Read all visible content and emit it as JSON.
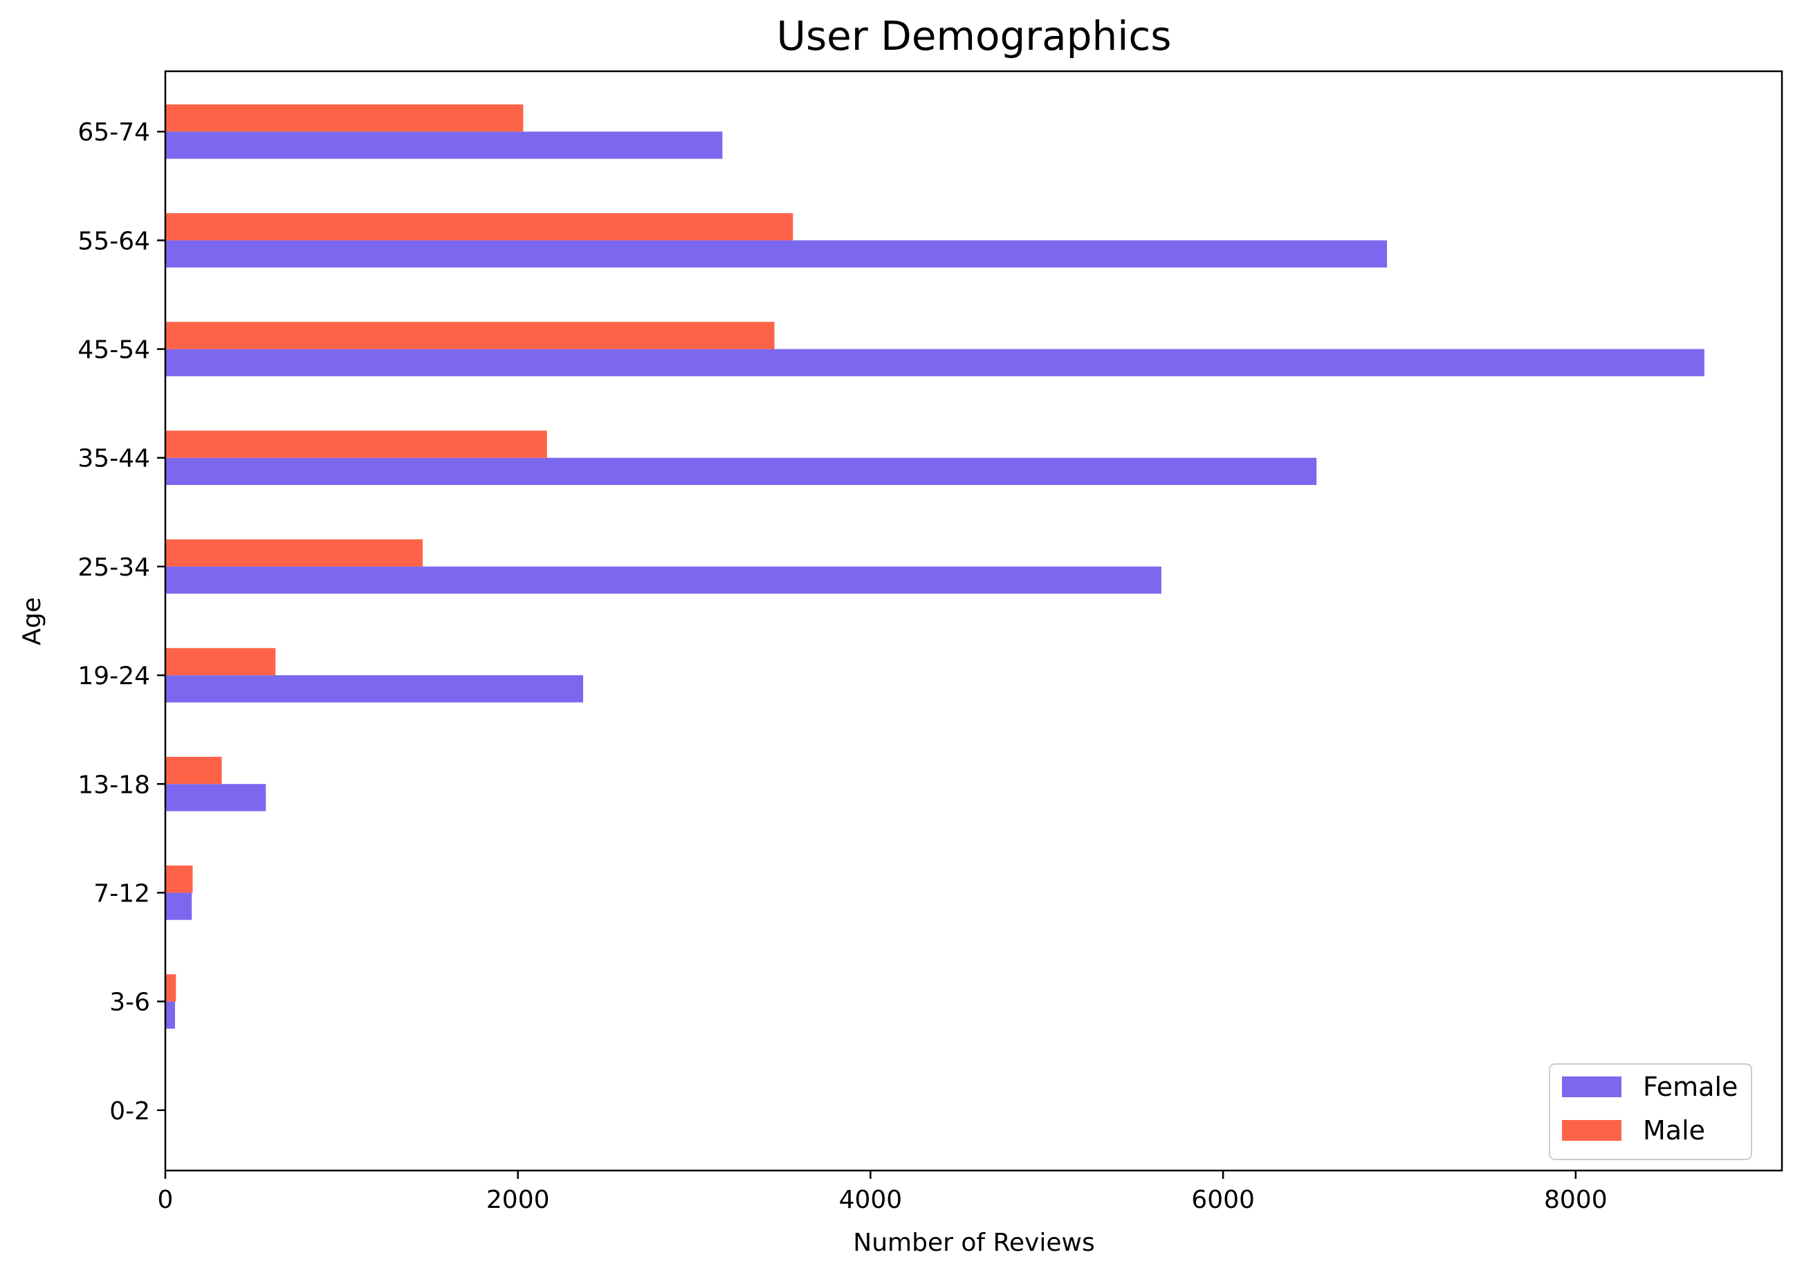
{
  "chart_data": {
    "type": "bar",
    "orientation": "horizontal",
    "title": "User Demographics",
    "xlabel": "Number of Reviews",
    "ylabel": "Age",
    "categories": [
      "0-2",
      "3-6",
      "7-12",
      "13-18",
      "19-24",
      "25-34",
      "35-44",
      "45-54",
      "55-64",
      "65-74"
    ],
    "series": [
      {
        "name": "Female",
        "color": "#7B68EE",
        "values": [
          0,
          55,
          150,
          570,
          2370,
          5650,
          6530,
          8730,
          6930,
          3160
        ]
      },
      {
        "name": "Male",
        "color": "#FF6347",
        "values": [
          0,
          60,
          155,
          320,
          625,
          1460,
          2165,
          3455,
          3560,
          2030
        ]
      }
    ],
    "xlim": [
      0,
      9170
    ],
    "xticks": [
      0,
      2000,
      4000,
      6000,
      8000
    ],
    "xtick_labels": [
      "0",
      "2000",
      "4000",
      "6000",
      "8000"
    ],
    "legend_position": "bottom-right",
    "grid": false
  }
}
